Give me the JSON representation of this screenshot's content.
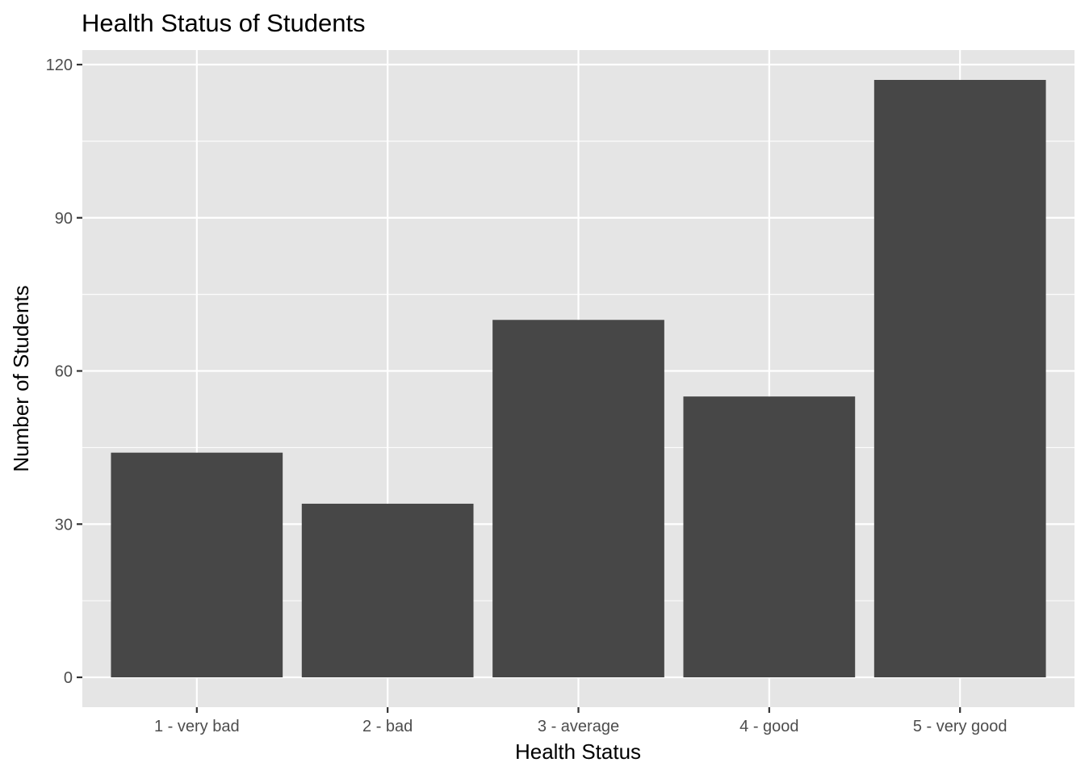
{
  "chart_data": {
    "type": "bar",
    "title": "Health Status of Students",
    "xlabel": "Health Status",
    "ylabel": "Number of Students",
    "categories": [
      "1 - very bad",
      "2 - bad",
      "3 - average",
      "4 - good",
      "5 - very good"
    ],
    "values": [
      44,
      34,
      70,
      55,
      117
    ],
    "ylim": [
      -5.85,
      122.85
    ],
    "yticks": [
      0,
      30,
      60,
      90,
      120
    ],
    "ytick_labels": [
      "0",
      "30",
      "60",
      "90",
      "120"
    ],
    "grid": true,
    "legend": "none",
    "colors": {
      "panel_background": "#e5e5e5",
      "grid": "#ffffff",
      "bar_fill": "#474747",
      "tick_mark": "#333333",
      "tick_label": "#4d4d4d",
      "text": "#000000"
    }
  }
}
